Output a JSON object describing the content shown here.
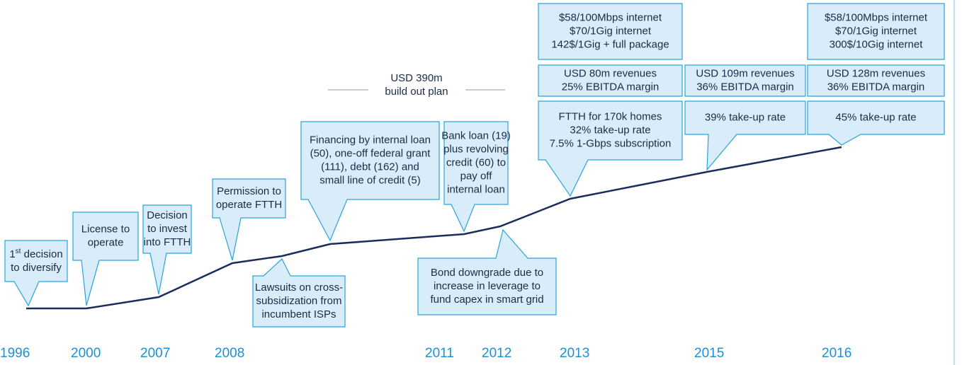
{
  "first_callout": {
    "number": "1",
    "sup": "st",
    "text": " decision",
    "line2": "to diversify"
  },
  "budget": {
    "amount": "USD 390m",
    "label": "build out plan"
  },
  "callouts": [
    {
      "lines": [
        "License to",
        "operate"
      ]
    },
    {
      "lines": [
        "Decision",
        "to invest",
        "into FTTH"
      ]
    },
    {
      "lines": [
        "Permission to",
        "operate FTTH"
      ]
    },
    {
      "lines": [
        "Lawsuits on cross-",
        "subsidization from",
        "incumbent ISPs"
      ]
    },
    {
      "lines": [
        "Financing by internal loan",
        "(50), one-off federal grant",
        "(111), debt (162) and",
        "small line of credit (5)"
      ]
    },
    {
      "lines": [
        "Bank loan (19)",
        "plus revolving",
        "credit (60) to",
        "pay off",
        "internal loan"
      ]
    },
    {
      "lines": [
        "Bond downgrade due to",
        "increase in leverage to",
        "fund capex in smart grid"
      ]
    },
    {
      "lines": [
        "$58/100Mbps internet",
        "$70/1Gig internet",
        "142$/1Gig + full package"
      ]
    },
    {
      "lines": [
        "USD 80m revenues",
        "25% EBITDA margin"
      ]
    },
    {
      "lines": [
        "FTTH for 170k homes",
        "32% take-up rate",
        "7.5% 1-Gbps subscription"
      ]
    },
    {
      "lines": [
        "USD 109m revenues",
        "36% EBITDA margin"
      ]
    },
    {
      "lines": [
        "39% take-up rate"
      ]
    },
    {
      "lines": [
        "$58/100Mbps internet",
        "$70/1Gig internet",
        "300$/10Gig internet"
      ]
    },
    {
      "lines": [
        "USD 128m revenues",
        "36% EBITDA margin"
      ]
    },
    {
      "lines": [
        "45% take-up rate"
      ]
    }
  ],
  "years": [
    "1996",
    "2000",
    "2007",
    "2008",
    "2011",
    "2012",
    "2013",
    "2015",
    "2016"
  ]
}
